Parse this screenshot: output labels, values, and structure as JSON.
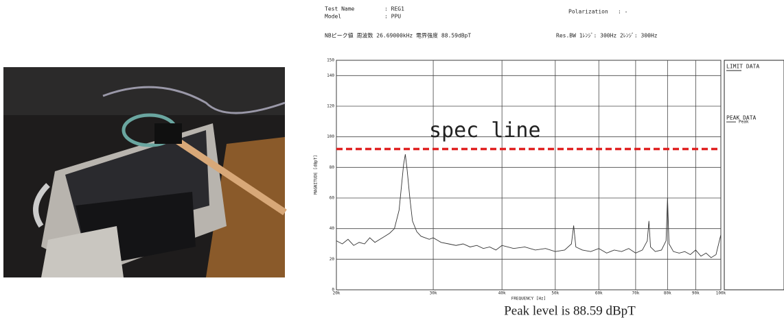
{
  "chart_data": {
    "type": "line",
    "header": {
      "test_name_label": "Test Name",
      "test_name": ": REG1",
      "model_label": "Model",
      "model": ": PPU",
      "polarization_label": "Polarization",
      "polarization": ": -",
      "peak_info": "NBピーク値  周波数  26.69000kHz   電界強度   88.59dBpT",
      "res_bw": "Res.BW  1ﾚﾝｼﾞ: 300Hz  2ﾚﾝｼﾞ: 300Hz"
    },
    "x_label": "FREQUENCY [Hz]",
    "y_label": "MAGNITUDE [dBpT]",
    "x_scale": "log",
    "grid": true,
    "xlim": [
      20000,
      100000
    ],
    "xticks": [
      {
        "value": 20000,
        "label": "20k"
      },
      {
        "value": 30000,
        "label": "30k"
      },
      {
        "value": 40000,
        "label": "40k"
      },
      {
        "value": 50000,
        "label": "50k"
      },
      {
        "value": 60000,
        "label": "60k"
      },
      {
        "value": 70000,
        "label": "70k"
      },
      {
        "value": 80000,
        "label": "80k"
      },
      {
        "value": 90000,
        "label": "90k"
      },
      {
        "value": 100000,
        "label": "100k"
      }
    ],
    "ylim": [
      0,
      150
    ],
    "yticks": [
      0,
      20,
      40,
      60,
      80,
      100,
      120,
      140,
      150
    ],
    "x": [
      20000,
      20500,
      21000,
      21500,
      22000,
      22500,
      23000,
      23500,
      24000,
      24500,
      25000,
      25500,
      26000,
      26300,
      26500,
      26690,
      26900,
      27200,
      27500,
      28000,
      28500,
      29000,
      29500,
      30000,
      31000,
      32000,
      33000,
      34000,
      35000,
      36000,
      37000,
      38000,
      39000,
      40000,
      42000,
      44000,
      46000,
      48000,
      50000,
      52000,
      53500,
      54000,
      54500,
      56000,
      58000,
      60000,
      62000,
      64000,
      66000,
      68000,
      70000,
      72000,
      73500,
      74000,
      74500,
      76000,
      78000,
      79500,
      80000,
      80500,
      82000,
      84000,
      86000,
      88000,
      90000,
      92000,
      94000,
      96000,
      98000,
      100000
    ],
    "series": [
      {
        "name": "Peak",
        "color": "#333333",
        "values": [
          32,
          30,
          33,
          29,
          31,
          30,
          34,
          31,
          33,
          35,
          37,
          40,
          52,
          70,
          82,
          88.59,
          78,
          60,
          45,
          38,
          35,
          34,
          33,
          34,
          31,
          30,
          29,
          30,
          28,
          29,
          27,
          28,
          26,
          29,
          27,
          28,
          26,
          27,
          25,
          26,
          30,
          42,
          28,
          26,
          25,
          27,
          24,
          26,
          25,
          27,
          24,
          26,
          32,
          45,
          28,
          25,
          26,
          32,
          60,
          30,
          25,
          24,
          25,
          23,
          26,
          22,
          24,
          21,
          23,
          36
        ]
      }
    ],
    "spec_line": {
      "label": "spec line",
      "value": 92,
      "color": "#e02020"
    },
    "legend": {
      "limit_title": "LIMIT DATA",
      "peak_title": "PEAK DATA"
    },
    "caption": "Peak level is 88.59 dBpT"
  }
}
